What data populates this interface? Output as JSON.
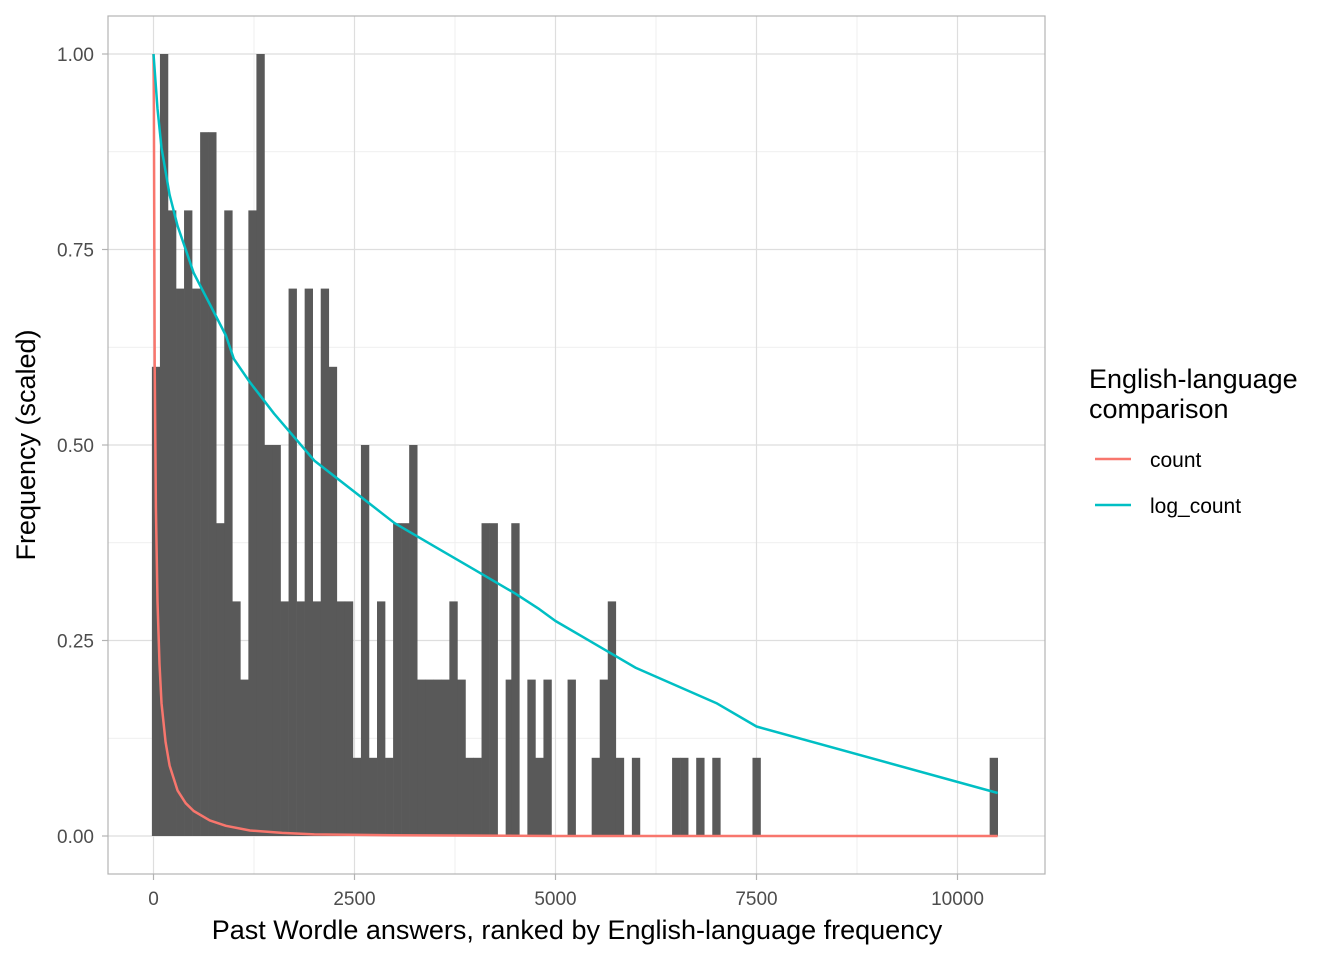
{
  "chart_data": {
    "type": "bar",
    "xlabel": "Past Wordle answers, ranked by English-language frequency",
    "ylabel": "Frequency (scaled)",
    "xlim": [
      -1100,
      11800
    ],
    "ylim": [
      -0.048,
      1.048
    ],
    "x_ticks": [
      0,
      2500,
      5000,
      7500,
      10000
    ],
    "x_tick_labels": [
      "0",
      "2500",
      "5000",
      "7500",
      "10000"
    ],
    "y_ticks": [
      0,
      0.25,
      0.5,
      0.75,
      1.0
    ],
    "y_tick_labels": [
      "0.00",
      "0.25",
      "0.50",
      "0.75",
      "1.00"
    ],
    "grid": true,
    "legend": {
      "title_lines": [
        "English-language",
        "comparison"
      ],
      "position": "right",
      "items": [
        {
          "label": "count",
          "color": "#F8766D"
        },
        {
          "label": "log_count",
          "color": "#00BFC4"
        }
      ]
    },
    "histogram": {
      "color": "#595959",
      "bin_start": -20,
      "bin_width": 100,
      "values": [
        0.6,
        1.0,
        0.8,
        0.7,
        0.8,
        0.7,
        0.9,
        0.9,
        0.4,
        0.8,
        0.3,
        0.2,
        0.8,
        1.0,
        0.5,
        0.5,
        0.3,
        0.7,
        0.3,
        0.7,
        0.3,
        0.7,
        0.6,
        0.3,
        0.3,
        0.1,
        0.5,
        0.1,
        0.3,
        0.1,
        0.4,
        0.4,
        0.5,
        0.2,
        0.2,
        0.2,
        0.2,
        0.3,
        0.2,
        0.1,
        0.1,
        0.4,
        0.4,
        0.0,
        0.2,
        0.0,
        0.4,
        0.0,
        0.0,
        0.2,
        0.0,
        0.1,
        0.2,
        0.1,
        0.0,
        0.0,
        0.2,
        0.0,
        0.0,
        0.0,
        0.0,
        0.0,
        0.0,
        0.0,
        0.0,
        0.1,
        0.0,
        0.1,
        0.0,
        0.0,
        0.0,
        0.0,
        0.0,
        0.0,
        0.0,
        0.0,
        0.0,
        0.0,
        0.0,
        0.0,
        0.0,
        0.0,
        0.0,
        0.0,
        0.0,
        0.0,
        0.0,
        0.0,
        0.0,
        0.0,
        0.0,
        0.0,
        0.0,
        0.0,
        0.0,
        0.0,
        0.0,
        0.0,
        0.0,
        0.0,
        0.0,
        0.0,
        0.0,
        0.0,
        0.1
      ],
      "extra": [
        {
          "x": 4500,
          "v": 0.4
        },
        {
          "x": 4700,
          "v": 0.2
        },
        {
          "x": 4800,
          "v": 0.1
        },
        {
          "x": 4900,
          "v": 0.2
        },
        {
          "x": 5200,
          "v": 0.2
        },
        {
          "x": 5500,
          "v": 0.1
        },
        {
          "x": 5600,
          "v": 0.2
        },
        {
          "x": 5700,
          "v": 0.3
        },
        {
          "x": 5800,
          "v": 0.1
        },
        {
          "x": 6000,
          "v": 0.1
        },
        {
          "x": 6500,
          "v": 0.1
        },
        {
          "x": 6600,
          "v": 0.1
        },
        {
          "x": 6800,
          "v": 0.1
        },
        {
          "x": 7000,
          "v": 0.1
        },
        {
          "x": 7500,
          "v": 0.1
        },
        {
          "x": 10450,
          "v": 0.1
        }
      ]
    },
    "series": [
      {
        "name": "count",
        "color": "#F8766D",
        "x": [
          0,
          5,
          15,
          30,
          50,
          75,
          100,
          150,
          200,
          300,
          400,
          500,
          700,
          900,
          1200,
          1600,
          2000,
          3000,
          5000,
          7500,
          10500
        ],
        "y": [
          1.0,
          0.93,
          0.6,
          0.42,
          0.3,
          0.22,
          0.17,
          0.12,
          0.09,
          0.058,
          0.042,
          0.032,
          0.02,
          0.013,
          0.007,
          0.004,
          0.002,
          0.001,
          0.0,
          0.0,
          0.0
        ]
      },
      {
        "name": "log_count",
        "color": "#00BFC4",
        "x": [
          0,
          50,
          100,
          200,
          300,
          400,
          500,
          700,
          900,
          1000,
          1200,
          1500,
          2000,
          2500,
          3000,
          3500,
          4000,
          4500,
          4800,
          5000,
          5500,
          6000,
          7000,
          7500,
          10500
        ],
        "y": [
          1.0,
          0.93,
          0.88,
          0.82,
          0.78,
          0.75,
          0.72,
          0.68,
          0.64,
          0.61,
          0.58,
          0.54,
          0.48,
          0.44,
          0.4,
          0.37,
          0.34,
          0.31,
          0.29,
          0.275,
          0.245,
          0.215,
          0.17,
          0.14,
          0.055
        ]
      }
    ]
  }
}
